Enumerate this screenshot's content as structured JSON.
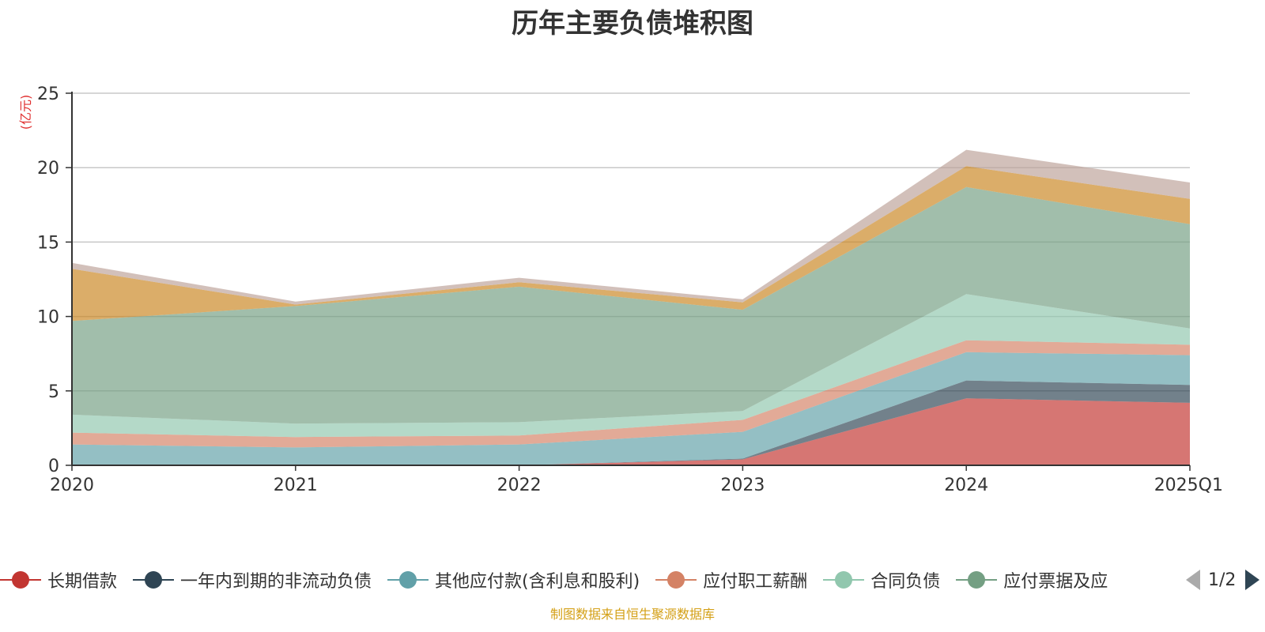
{
  "chart_data": {
    "type": "area",
    "stacked": true,
    "title": "历年主要负债堆积图",
    "unit_label": "(亿元)",
    "categories": [
      "2020",
      "2021",
      "2022",
      "2023",
      "2024",
      "2025Q1"
    ],
    "ylim": [
      0,
      25
    ],
    "yticks": [
      0,
      5,
      10,
      15,
      20,
      25
    ],
    "grid": true,
    "legend_position": "bottom",
    "series": [
      {
        "name": "长期借款",
        "color": "#c23531",
        "values": [
          0,
          0,
          0,
          0.4,
          4.5,
          4.2
        ]
      },
      {
        "name": "一年内到期的非流动负债",
        "color": "#2f4554",
        "values": [
          0,
          0,
          0,
          0.05,
          1.2,
          1.2
        ]
      },
      {
        "name": "其他应付款(含利息和股利)",
        "color": "#61a0a8",
        "values": [
          1.4,
          1.2,
          1.4,
          1.8,
          1.9,
          2.0
        ]
      },
      {
        "name": "应付职工薪酬",
        "color": "#d48265",
        "values": [
          0.8,
          0.7,
          0.6,
          0.8,
          0.8,
          0.7
        ]
      },
      {
        "name": "合同负债",
        "color": "#91c7ae",
        "values": [
          1.2,
          0.9,
          0.9,
          0.6,
          3.1,
          1.1
        ]
      },
      {
        "name": "应付票据及应付账款",
        "color": "#749f83",
        "values": [
          6.3,
          7.9,
          9.1,
          6.8,
          7.2,
          7.0
        ]
      },
      {
        "name": "",
        "color": "#ca8622",
        "values": [
          3.5,
          0.1,
          0.3,
          0.5,
          1.4,
          1.7
        ]
      },
      {
        "name": "",
        "color": "#bda29a",
        "values": [
          0.4,
          0.2,
          0.3,
          0.2,
          1.1,
          1.1
        ]
      }
    ]
  },
  "legend": {
    "visible_labels": [
      "长期借款",
      "一年内到期的非流动负债",
      "其他应付款(含利息和股利)",
      "应付职工薪酬",
      "合同负债",
      "应付票据及应"
    ],
    "page": "1/2"
  },
  "source_note": "制图数据来自恒生聚源数据库"
}
